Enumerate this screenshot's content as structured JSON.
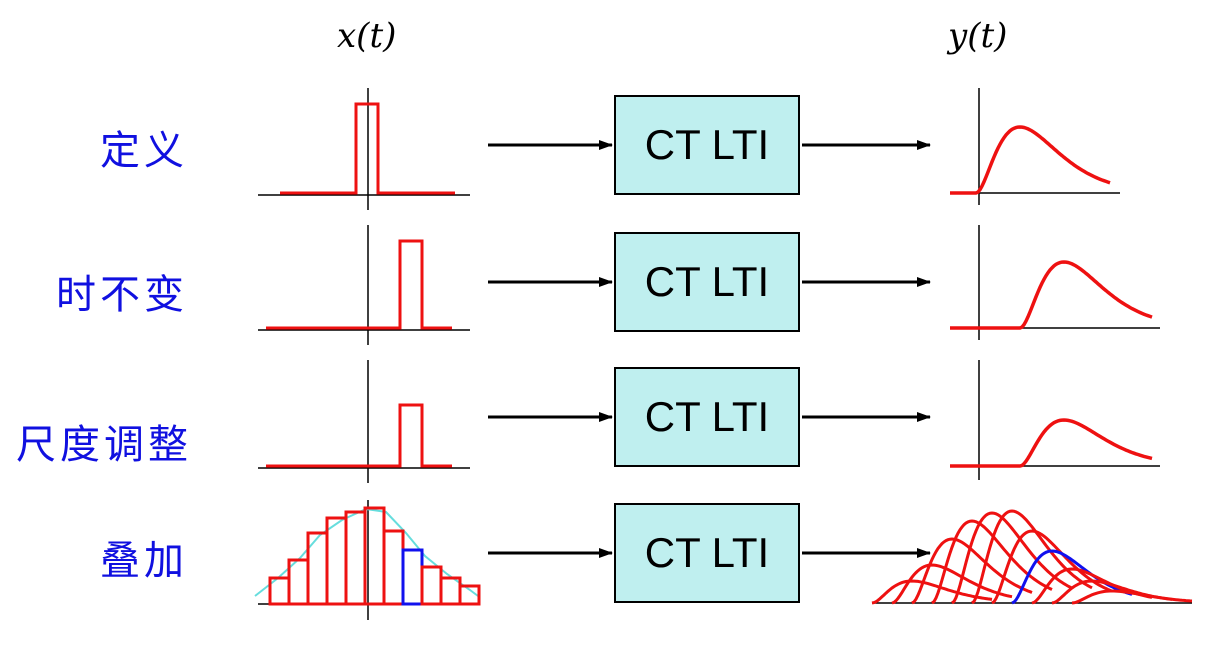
{
  "headers": {
    "input": "x(t)",
    "output": "y(t)"
  },
  "rows": [
    {
      "label": "定义",
      "system": "CT LTI"
    },
    {
      "label": "时不变",
      "system": "CT LTI"
    },
    {
      "label": "尺度调整",
      "system": "CT LTI"
    },
    {
      "label": "叠加",
      "system": "CT LTI"
    }
  ],
  "colors": {
    "signal": "#ee1111",
    "highlight": "#1111ee",
    "envelope": "#66dddd",
    "label": "#1010e0",
    "box_fill": "#bfefef"
  }
}
